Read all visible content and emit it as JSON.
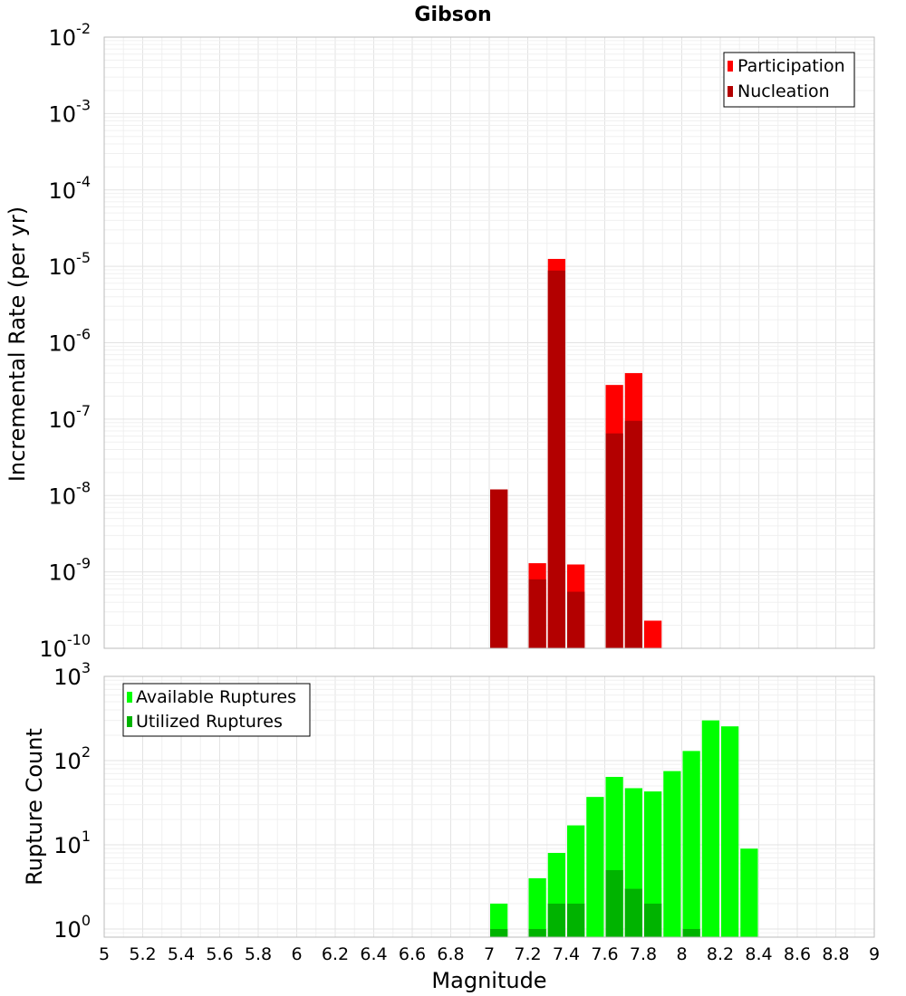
{
  "chart_data": [
    {
      "type": "bar",
      "title": "Gibson",
      "xlabel": "",
      "ylabel": "Incremental Rate (per yr)",
      "y_scale": "log",
      "ylim": [
        1e-10,
        0.01
      ],
      "xlim": [
        5,
        9
      ],
      "y_ticks": [
        {
          "base": "10",
          "exp": "-2",
          "value": 0.01
        },
        {
          "base": "10",
          "exp": "-3",
          "value": 0.001
        },
        {
          "base": "10",
          "exp": "-4",
          "value": 0.0001
        },
        {
          "base": "10",
          "exp": "-5",
          "value": 1e-05
        },
        {
          "base": "10",
          "exp": "-6",
          "value": 1e-06
        },
        {
          "base": "10",
          "exp": "-7",
          "value": 1e-07
        },
        {
          "base": "10",
          "exp": "-8",
          "value": 1e-08
        },
        {
          "base": "10",
          "exp": "-9",
          "value": 1e-09
        },
        {
          "base": "10",
          "exp": "-10",
          "value": 1e-10
        }
      ],
      "grid": true,
      "legend_position": "top-right",
      "series": [
        {
          "name": "Participation",
          "color": "#ff0000",
          "points": [
            {
              "x": 7.05,
              "y": 1.2e-08
            },
            {
              "x": 7.25,
              "y": 1.3e-09
            },
            {
              "x": 7.35,
              "y": 1.25e-05
            },
            {
              "x": 7.45,
              "y": 1.25e-09
            },
            {
              "x": 7.65,
              "y": 2.8e-07
            },
            {
              "x": 7.75,
              "y": 4e-07
            },
            {
              "x": 7.85,
              "y": 2.3e-10
            }
          ]
        },
        {
          "name": "Nucleation",
          "color": "#b30000",
          "points": [
            {
              "x": 7.05,
              "y": 1.2e-08
            },
            {
              "x": 7.25,
              "y": 8e-10
            },
            {
              "x": 7.35,
              "y": 8.8e-06
            },
            {
              "x": 7.45,
              "y": 5.5e-10
            },
            {
              "x": 7.65,
              "y": 6.5e-08
            },
            {
              "x": 7.75,
              "y": 9.5e-08
            }
          ]
        }
      ]
    },
    {
      "type": "bar",
      "title": "",
      "xlabel": "Magnitude",
      "ylabel": "Rupture Count",
      "y_scale": "log",
      "ylim": [
        0.8,
        1000
      ],
      "xlim": [
        5,
        9
      ],
      "y_ticks": [
        {
          "base": "10",
          "exp": "3",
          "value": 1000
        },
        {
          "base": "10",
          "exp": "2",
          "value": 100
        },
        {
          "base": "10",
          "exp": "1",
          "value": 10
        },
        {
          "base": "10",
          "exp": "0",
          "value": 1
        }
      ],
      "x_ticks": [
        "5",
        "5.2",
        "5.4",
        "5.6",
        "5.8",
        "6",
        "6.2",
        "6.4",
        "6.6",
        "6.8",
        "7",
        "7.2",
        "7.4",
        "7.6",
        "7.8",
        "8",
        "8.2",
        "8.4",
        "8.6",
        "8.8",
        "9"
      ],
      "grid": true,
      "legend_position": "top-left",
      "series": [
        {
          "name": "Available Ruptures",
          "color": "#00ff00",
          "points": [
            {
              "x": 7.05,
              "y": 2
            },
            {
              "x": 7.25,
              "y": 4
            },
            {
              "x": 7.35,
              "y": 8
            },
            {
              "x": 7.45,
              "y": 17
            },
            {
              "x": 7.55,
              "y": 37
            },
            {
              "x": 7.65,
              "y": 64
            },
            {
              "x": 7.75,
              "y": 47
            },
            {
              "x": 7.85,
              "y": 43
            },
            {
              "x": 7.95,
              "y": 75
            },
            {
              "x": 8.05,
              "y": 130
            },
            {
              "x": 8.15,
              "y": 300
            },
            {
              "x": 8.25,
              "y": 255
            },
            {
              "x": 8.35,
              "y": 9
            }
          ]
        },
        {
          "name": "Utilized Ruptures",
          "color": "#00b300",
          "points": [
            {
              "x": 7.05,
              "y": 1
            },
            {
              "x": 7.25,
              "y": 1
            },
            {
              "x": 7.35,
              "y": 2
            },
            {
              "x": 7.45,
              "y": 2
            },
            {
              "x": 7.65,
              "y": 5
            },
            {
              "x": 7.75,
              "y": 3
            },
            {
              "x": 7.85,
              "y": 2
            },
            {
              "x": 8.05,
              "y": 1
            }
          ]
        }
      ]
    }
  ]
}
